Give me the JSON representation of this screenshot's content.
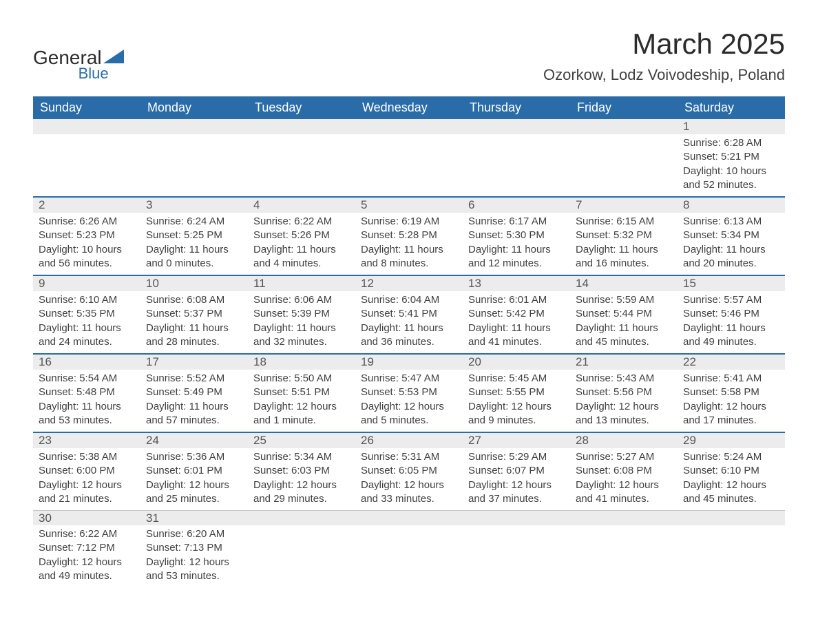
{
  "logo": {
    "text_general": "General",
    "text_blue": "Blue",
    "shape_color": "#2a6ca8"
  },
  "header": {
    "month_title": "March 2025",
    "location": "Ozorkow, Lodz Voivodeship, Poland"
  },
  "colors": {
    "header_bg": "#2a6ca8",
    "header_text": "#ffffff",
    "daynum_bg": "#ececec",
    "border": "#2a6ca8",
    "body_text": "#404040"
  },
  "weekdays": [
    "Sunday",
    "Monday",
    "Tuesday",
    "Wednesday",
    "Thursday",
    "Friday",
    "Saturday"
  ],
  "days": {
    "1": {
      "sunrise": "6:28 AM",
      "sunset": "5:21 PM",
      "daylight": "10 hours and 52 minutes."
    },
    "2": {
      "sunrise": "6:26 AM",
      "sunset": "5:23 PM",
      "daylight": "10 hours and 56 minutes."
    },
    "3": {
      "sunrise": "6:24 AM",
      "sunset": "5:25 PM",
      "daylight": "11 hours and 0 minutes."
    },
    "4": {
      "sunrise": "6:22 AM",
      "sunset": "5:26 PM",
      "daylight": "11 hours and 4 minutes."
    },
    "5": {
      "sunrise": "6:19 AM",
      "sunset": "5:28 PM",
      "daylight": "11 hours and 8 minutes."
    },
    "6": {
      "sunrise": "6:17 AM",
      "sunset": "5:30 PM",
      "daylight": "11 hours and 12 minutes."
    },
    "7": {
      "sunrise": "6:15 AM",
      "sunset": "5:32 PM",
      "daylight": "11 hours and 16 minutes."
    },
    "8": {
      "sunrise": "6:13 AM",
      "sunset": "5:34 PM",
      "daylight": "11 hours and 20 minutes."
    },
    "9": {
      "sunrise": "6:10 AM",
      "sunset": "5:35 PM",
      "daylight": "11 hours and 24 minutes."
    },
    "10": {
      "sunrise": "6:08 AM",
      "sunset": "5:37 PM",
      "daylight": "11 hours and 28 minutes."
    },
    "11": {
      "sunrise": "6:06 AM",
      "sunset": "5:39 PM",
      "daylight": "11 hours and 32 minutes."
    },
    "12": {
      "sunrise": "6:04 AM",
      "sunset": "5:41 PM",
      "daylight": "11 hours and 36 minutes."
    },
    "13": {
      "sunrise": "6:01 AM",
      "sunset": "5:42 PM",
      "daylight": "11 hours and 41 minutes."
    },
    "14": {
      "sunrise": "5:59 AM",
      "sunset": "5:44 PM",
      "daylight": "11 hours and 45 minutes."
    },
    "15": {
      "sunrise": "5:57 AM",
      "sunset": "5:46 PM",
      "daylight": "11 hours and 49 minutes."
    },
    "16": {
      "sunrise": "5:54 AM",
      "sunset": "5:48 PM",
      "daylight": "11 hours and 53 minutes."
    },
    "17": {
      "sunrise": "5:52 AM",
      "sunset": "5:49 PM",
      "daylight": "11 hours and 57 minutes."
    },
    "18": {
      "sunrise": "5:50 AM",
      "sunset": "5:51 PM",
      "daylight": "12 hours and 1 minute."
    },
    "19": {
      "sunrise": "5:47 AM",
      "sunset": "5:53 PM",
      "daylight": "12 hours and 5 minutes."
    },
    "20": {
      "sunrise": "5:45 AM",
      "sunset": "5:55 PM",
      "daylight": "12 hours and 9 minutes."
    },
    "21": {
      "sunrise": "5:43 AM",
      "sunset": "5:56 PM",
      "daylight": "12 hours and 13 minutes."
    },
    "22": {
      "sunrise": "5:41 AM",
      "sunset": "5:58 PM",
      "daylight": "12 hours and 17 minutes."
    },
    "23": {
      "sunrise": "5:38 AM",
      "sunset": "6:00 PM",
      "daylight": "12 hours and 21 minutes."
    },
    "24": {
      "sunrise": "5:36 AM",
      "sunset": "6:01 PM",
      "daylight": "12 hours and 25 minutes."
    },
    "25": {
      "sunrise": "5:34 AM",
      "sunset": "6:03 PM",
      "daylight": "12 hours and 29 minutes."
    },
    "26": {
      "sunrise": "5:31 AM",
      "sunset": "6:05 PM",
      "daylight": "12 hours and 33 minutes."
    },
    "27": {
      "sunrise": "5:29 AM",
      "sunset": "6:07 PM",
      "daylight": "12 hours and 37 minutes."
    },
    "28": {
      "sunrise": "5:27 AM",
      "sunset": "6:08 PM",
      "daylight": "12 hours and 41 minutes."
    },
    "29": {
      "sunrise": "5:24 AM",
      "sunset": "6:10 PM",
      "daylight": "12 hours and 45 minutes."
    },
    "30": {
      "sunrise": "6:22 AM",
      "sunset": "7:12 PM",
      "daylight": "12 hours and 49 minutes."
    },
    "31": {
      "sunrise": "6:20 AM",
      "sunset": "7:13 PM",
      "daylight": "12 hours and 53 minutes."
    }
  },
  "labels": {
    "sunrise": "Sunrise: ",
    "sunset": "Sunset: ",
    "daylight": "Daylight: "
  },
  "grid": [
    [
      null,
      null,
      null,
      null,
      null,
      null,
      "1"
    ],
    [
      "2",
      "3",
      "4",
      "5",
      "6",
      "7",
      "8"
    ],
    [
      "9",
      "10",
      "11",
      "12",
      "13",
      "14",
      "15"
    ],
    [
      "16",
      "17",
      "18",
      "19",
      "20",
      "21",
      "22"
    ],
    [
      "23",
      "24",
      "25",
      "26",
      "27",
      "28",
      "29"
    ],
    [
      "30",
      "31",
      null,
      null,
      null,
      null,
      null
    ]
  ]
}
